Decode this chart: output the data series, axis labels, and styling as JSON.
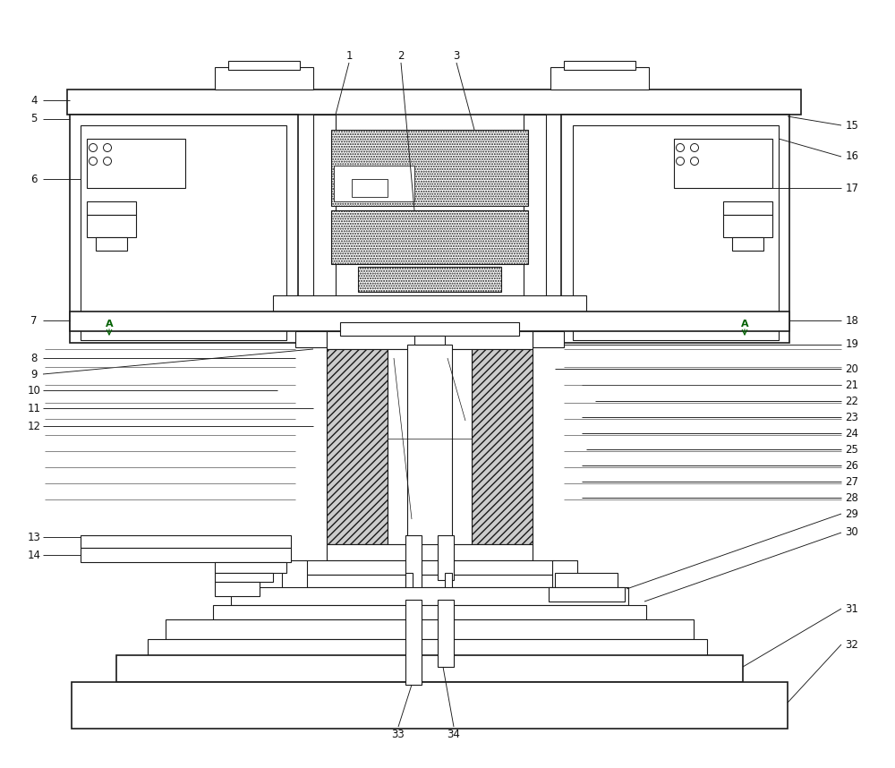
{
  "bg_color": "#ffffff",
  "line_color": "#1a1a1a",
  "label_color": "#333333",
  "fig_width": 10.0,
  "fig_height": 8.58,
  "dpi": 100
}
